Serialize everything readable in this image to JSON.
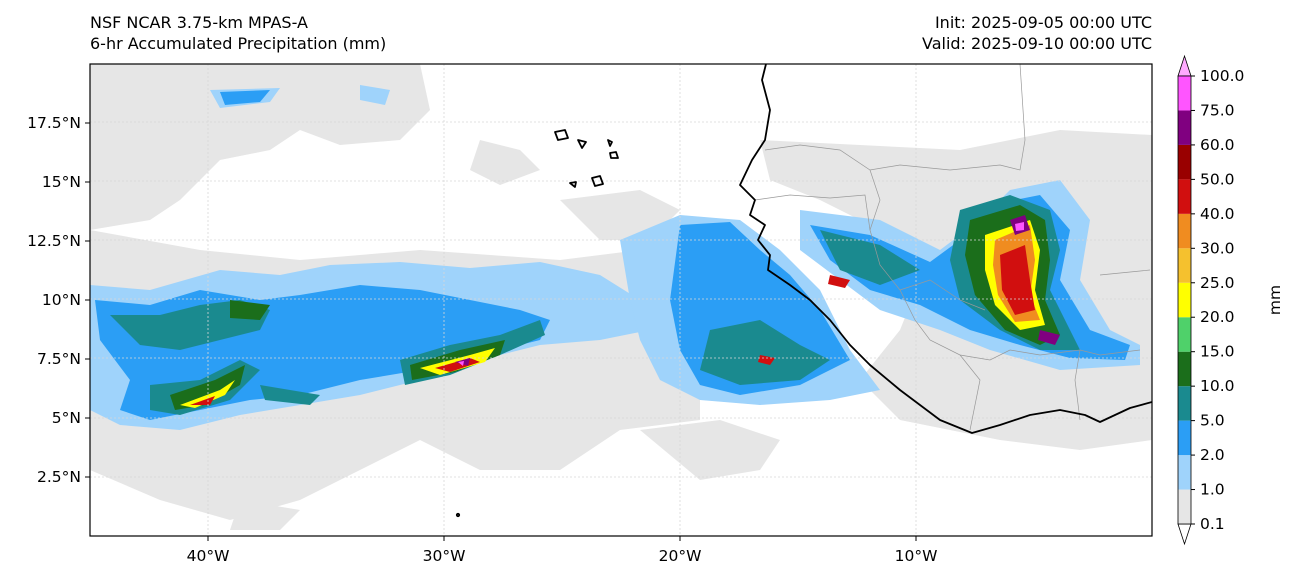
{
  "title": {
    "model": "NSF NCAR 3.75-km MPAS-A",
    "field": "6-hr Accumulated Precipitation (mm)",
    "init": "Init: 2025-09-05 00:00 UTC",
    "valid": "Valid: 2025-09-10 00:00 UTC"
  },
  "map": {
    "lon_range": [
      -45,
      0
    ],
    "lat_range": [
      0,
      20
    ],
    "lat_ticks": [
      "2.5°N",
      "5°N",
      "7.5°N",
      "10°N",
      "12.5°N",
      "15°N",
      "17.5°N"
    ],
    "lat_tick_values": [
      2.5,
      5,
      7.5,
      10,
      12.5,
      15,
      17.5
    ],
    "lon_ticks": [
      "40°W",
      "30°W",
      "20°W",
      "10°W"
    ],
    "lon_tick_values": [
      -40,
      -30,
      -20,
      -10
    ],
    "gridlines": true
  },
  "colorbar": {
    "unit": "mm",
    "levels": [
      "0.1",
      "1.0",
      "2.0",
      "5.0",
      "10.0",
      "15.0",
      "20.0",
      "25.0",
      "30.0",
      "40.0",
      "50.0",
      "60.0",
      "75.0",
      "100.0"
    ],
    "colors": [
      "#e6e6e6",
      "#9fd3fb",
      "#2b9ef5",
      "#1a8a8f",
      "#1b6e1b",
      "#4fd16a",
      "#ffff00",
      "#f5c12e",
      "#f08c20",
      "#d10f0f",
      "#990000",
      "#800080",
      "#ff55ff"
    ],
    "under_color": "#ffffff",
    "over_color": "#ffaaff"
  }
}
